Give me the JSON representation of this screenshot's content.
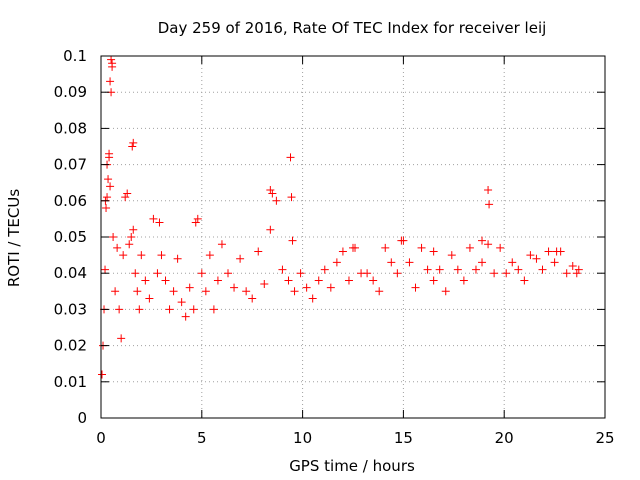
{
  "chart_data": {
    "type": "scatter",
    "title": "Day 259 of 2016, Rate Of TEC Index for receiver leij",
    "xlabel": "GPS time / hours",
    "ylabel": "ROTI / TECUs",
    "xlim": [
      0,
      25
    ],
    "ylim": [
      0,
      0.1
    ],
    "xticks": [
      0,
      5,
      10,
      15,
      20,
      25
    ],
    "xtick_labels": [
      "0",
      "5",
      "10",
      "15",
      "20",
      "25"
    ],
    "yticks": [
      0,
      0.01,
      0.02,
      0.03,
      0.04,
      0.05,
      0.06,
      0.07,
      0.08,
      0.09,
      0.1
    ],
    "ytick_labels": [
      "0",
      "0.01",
      "0.02",
      "0.03",
      "0.04",
      "0.05",
      "0.06",
      "0.07",
      "0.08",
      "0.09",
      "0.1"
    ],
    "grid": true,
    "marker": "+",
    "series": [
      {
        "name": "ROTI",
        "color": "#ff0000",
        "x": [
          0.05,
          0.1,
          0.15,
          0.2,
          0.25,
          0.3,
          0.35,
          0.4,
          0.45,
          0.5,
          0.55,
          0.6,
          0.7,
          0.8,
          0.9,
          1.0,
          1.1,
          1.2,
          1.3,
          1.4,
          1.5,
          1.6,
          1.7,
          1.8,
          1.9,
          2.0,
          2.2,
          2.4,
          2.6,
          2.8,
          3.0,
          3.2,
          3.4,
          3.6,
          3.8,
          4.0,
          4.2,
          4.4,
          4.6,
          4.8,
          5.0,
          5.2,
          5.4,
          5.6,
          5.8,
          6.0,
          6.3,
          6.6,
          6.9,
          7.2,
          7.5,
          7.8,
          8.1,
          8.4,
          8.7,
          9.0,
          9.3,
          9.6,
          9.9,
          10.2,
          10.5,
          10.8,
          11.1,
          11.4,
          11.7,
          12.0,
          12.3,
          12.6,
          12.9,
          13.2,
          13.5,
          13.8,
          14.1,
          14.4,
          14.7,
          15.0,
          15.3,
          15.6,
          15.9,
          16.2,
          16.5,
          16.8,
          17.1,
          17.4,
          17.7,
          18.0,
          18.3,
          18.6,
          18.9,
          19.2,
          19.5,
          19.8,
          20.1,
          20.4,
          20.7,
          21.0,
          21.3,
          21.6,
          21.9,
          22.2,
          22.5,
          22.8,
          23.1,
          23.4,
          23.7,
          0.22,
          0.3,
          0.45,
          0.5,
          0.55,
          1.55,
          1.6,
          0.4,
          8.4,
          8.5,
          9.4,
          9.45,
          9.5,
          19.2,
          19.25,
          2.9,
          4.7,
          12.5,
          14.9,
          16.5,
          18.9,
          22.6,
          23.6
        ],
        "y": [
          0.012,
          0.02,
          0.03,
          0.041,
          0.058,
          0.061,
          0.066,
          0.072,
          0.064,
          0.099,
          0.097,
          0.05,
          0.035,
          0.047,
          0.03,
          0.022,
          0.045,
          0.061,
          0.062,
          0.048,
          0.05,
          0.052,
          0.04,
          0.035,
          0.03,
          0.045,
          0.038,
          0.033,
          0.055,
          0.04,
          0.045,
          0.038,
          0.03,
          0.035,
          0.044,
          0.032,
          0.028,
          0.036,
          0.03,
          0.055,
          0.04,
          0.035,
          0.045,
          0.03,
          0.038,
          0.048,
          0.04,
          0.036,
          0.044,
          0.035,
          0.033,
          0.046,
          0.037,
          0.052,
          0.06,
          0.041,
          0.038,
          0.035,
          0.04,
          0.036,
          0.033,
          0.038,
          0.041,
          0.036,
          0.043,
          0.046,
          0.038,
          0.047,
          0.04,
          0.04,
          0.038,
          0.035,
          0.047,
          0.043,
          0.04,
          0.049,
          0.043,
          0.036,
          0.047,
          0.041,
          0.038,
          0.041,
          0.035,
          0.045,
          0.041,
          0.038,
          0.047,
          0.041,
          0.043,
          0.048,
          0.04,
          0.047,
          0.04,
          0.043,
          0.041,
          0.038,
          0.045,
          0.044,
          0.041,
          0.046,
          0.043,
          0.046,
          0.04,
          0.042,
          0.041,
          0.06,
          0.07,
          0.093,
          0.09,
          0.098,
          0.075,
          0.076,
          0.073,
          0.063,
          0.062,
          0.072,
          0.061,
          0.049,
          0.063,
          0.059,
          0.054,
          0.054,
          0.047,
          0.049,
          0.046,
          0.049,
          0.046,
          0.04
        ]
      }
    ]
  }
}
